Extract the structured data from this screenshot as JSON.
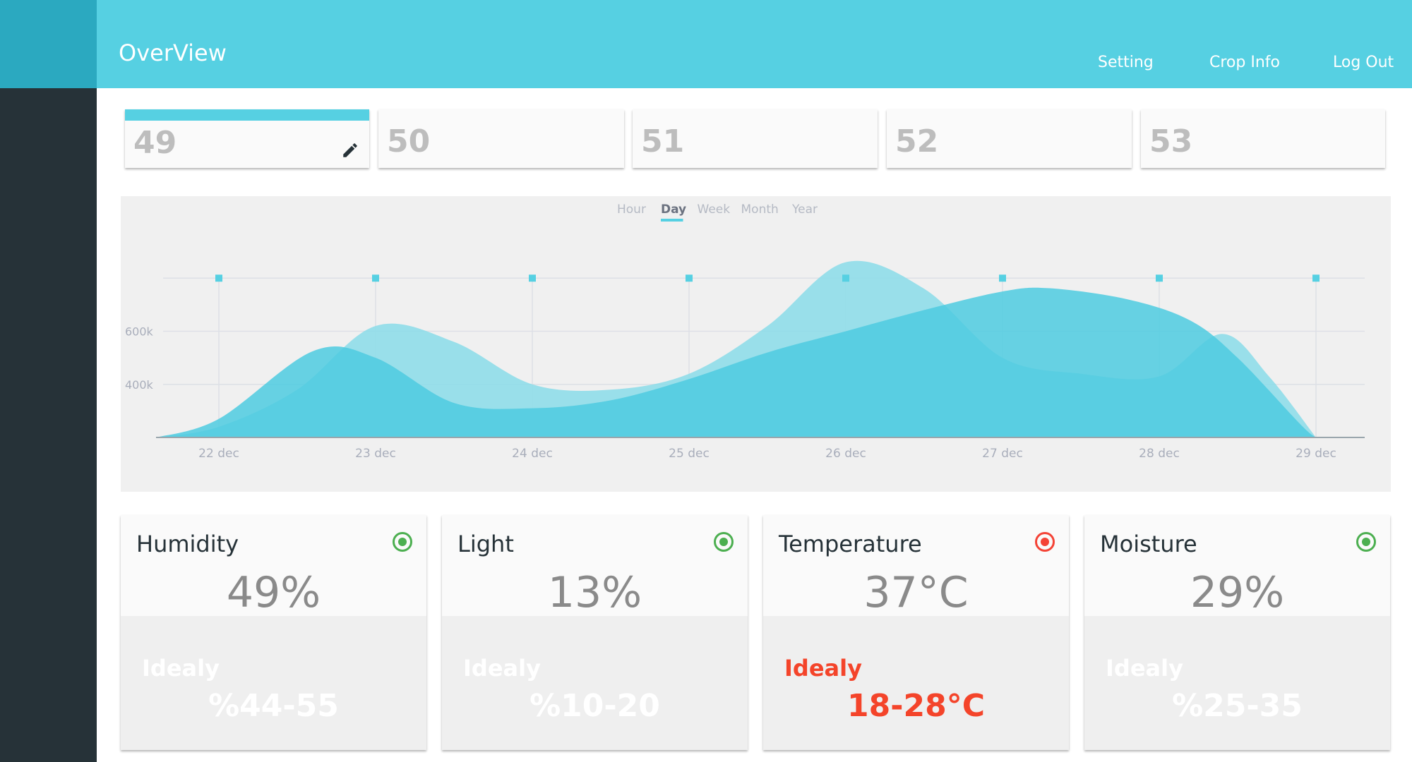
{
  "header": {
    "title": "OverView",
    "nav": [
      "Setting",
      "Crop Info",
      "Log Out"
    ]
  },
  "tabs": [
    {
      "label": "49",
      "active": true
    },
    {
      "label": "50"
    },
    {
      "label": "51"
    },
    {
      "label": "52"
    },
    {
      "label": "53"
    }
  ],
  "colors": {
    "accent": "#56d0e2",
    "sidebar": "#263238",
    "ok": "#4caf50",
    "alert": "#f44336"
  },
  "chart_data": {
    "type": "area",
    "periods": [
      "Hour",
      "Day",
      "Week",
      "Month",
      "Year"
    ],
    "selected_period": "Day",
    "x_ticks": [
      "22 dec",
      "23 dec",
      "24 dec",
      "25 dec",
      "26 dec",
      "27 dec",
      "28 dec",
      "29 dec"
    ],
    "y_ticks": [
      "400k",
      "600k"
    ],
    "ylim": [
      200000,
      800000
    ],
    "grid": true,
    "series": [
      {
        "color": "#4ecbe0",
        "points": [
          [
            21.6,
            200
          ],
          [
            22,
            270
          ],
          [
            22.6,
            525
          ],
          [
            23,
            500
          ],
          [
            23.5,
            330
          ],
          [
            24,
            310
          ],
          [
            24.5,
            340
          ],
          [
            25,
            420
          ],
          [
            25.5,
            520
          ],
          [
            26,
            600
          ],
          [
            26.5,
            680
          ],
          [
            27,
            750
          ],
          [
            27.3,
            762
          ],
          [
            27.8,
            720
          ],
          [
            28.2,
            640
          ],
          [
            28.5,
            500
          ],
          [
            28.9,
            250
          ],
          [
            29,
            200
          ]
        ]
      },
      {
        "color": "#8fdde9",
        "points": [
          [
            21.6,
            200
          ],
          [
            22,
            240
          ],
          [
            22.5,
            380
          ],
          [
            23,
            620
          ],
          [
            23.5,
            560
          ],
          [
            24,
            400
          ],
          [
            24.5,
            380
          ],
          [
            25,
            440
          ],
          [
            25.5,
            620
          ],
          [
            26,
            860
          ],
          [
            26.5,
            760
          ],
          [
            27,
            500
          ],
          [
            27.5,
            440
          ],
          [
            28,
            430
          ],
          [
            28.4,
            590
          ],
          [
            28.7,
            430
          ],
          [
            29,
            200
          ]
        ]
      }
    ]
  },
  "metrics": [
    {
      "name": "Humidity",
      "value": "49%",
      "ideal_label": "Idealy",
      "ideal": "%44-55",
      "status": "ok"
    },
    {
      "name": "Light",
      "value": "13%",
      "ideal_label": "Idealy",
      "ideal": "%10-20",
      "status": "ok"
    },
    {
      "name": "Temperature",
      "value": "37°C",
      "ideal_label": "Idealy",
      "ideal": "18-28°C",
      "status": "alert"
    },
    {
      "name": "Moisture",
      "value": "29%",
      "ideal_label": "Idealy",
      "ideal": "%25-35",
      "status": "ok"
    }
  ]
}
